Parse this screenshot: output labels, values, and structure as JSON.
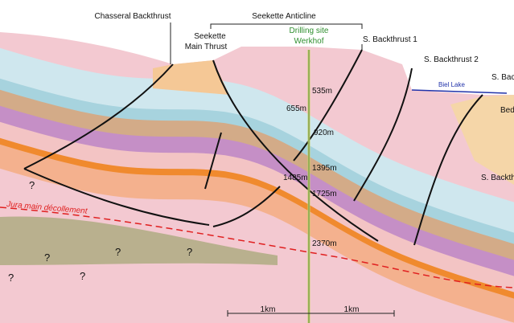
{
  "labels": {
    "chasseral_backthrust": "Chasseral Backthrust",
    "seekette_anticline": "Seekette Anticline",
    "seekette_main_thrust": [
      "Seekette",
      "Main Thrust"
    ],
    "drilling_site": [
      "Drilling site",
      "Werkhof"
    ],
    "s_backthrust_1": "S. Backthrust 1",
    "s_backthrust_2": "S. Backthrust 2",
    "biel_lake": "Biel Lake",
    "s_back_cut": "S. Back",
    "bed_cut": "Bed",
    "s_backth_cut": "S. Backth",
    "jura_decollement": "Jura main décollement"
  },
  "depths": [
    "535m",
    "655m",
    "920m",
    "1395m",
    "1485m",
    "1725m",
    "2370m"
  ],
  "unknowns": [
    "?",
    "?",
    "?",
    "?",
    "?",
    "?"
  ],
  "scale": [
    "1km",
    "1km"
  ]
}
